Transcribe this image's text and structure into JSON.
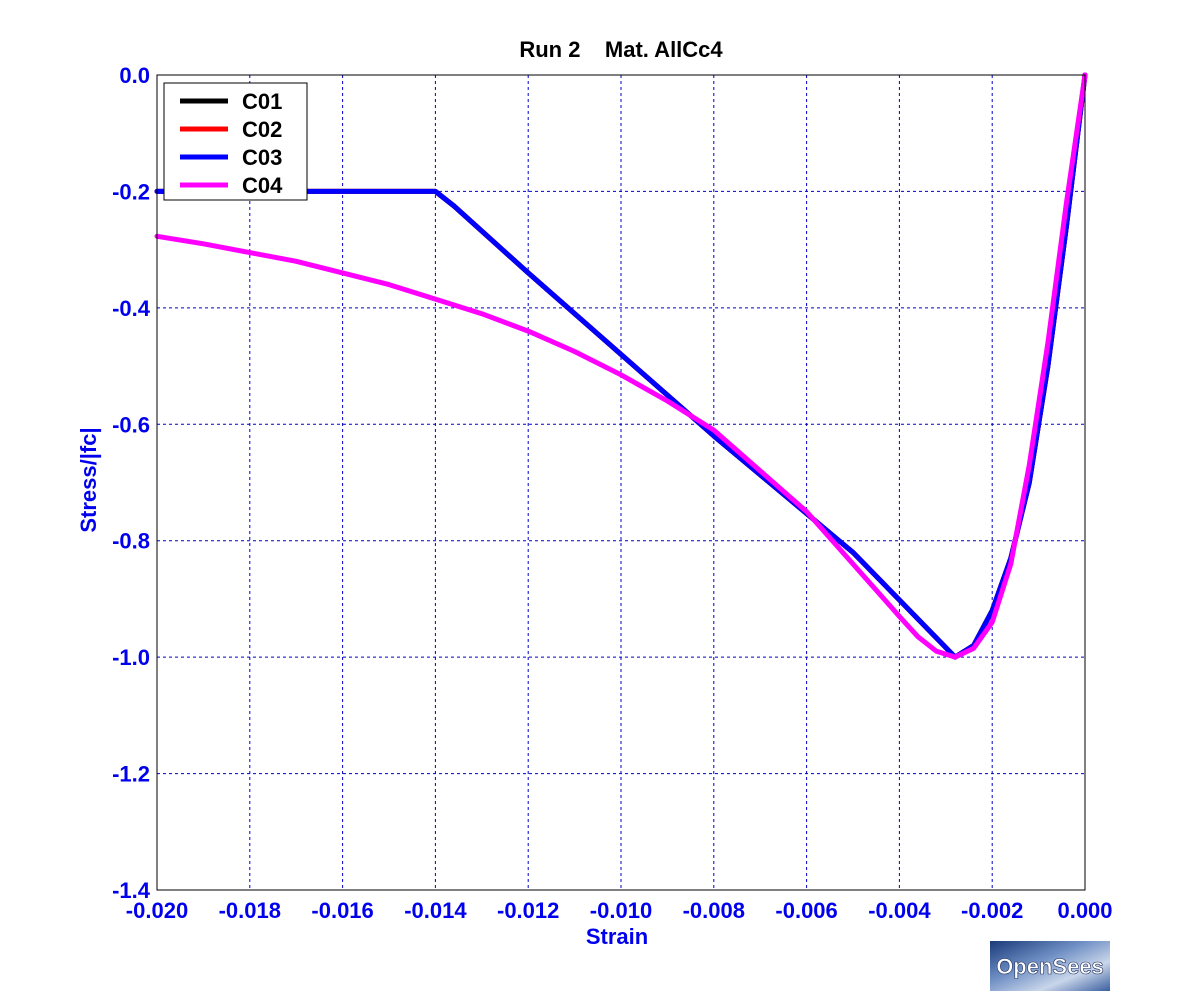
{
  "chart_data": {
    "type": "line",
    "title": "Run 2    Mat. AllCc4",
    "xlabel": "Strain",
    "ylabel": "Stress/|fc|",
    "xlim": [
      -0.02,
      0.0
    ],
    "ylim": [
      -1.4,
      0.0
    ],
    "xticks": [
      -0.02,
      -0.018,
      -0.016,
      -0.014,
      -0.012,
      -0.01,
      -0.008,
      -0.006,
      -0.004,
      -0.002,
      0.0
    ],
    "xtick_labels": [
      "-0.020",
      "-0.018",
      "-0.016",
      "-0.014",
      "-0.012",
      "-0.010",
      "-0.008",
      "-0.006",
      "-0.004",
      "-0.002",
      "0.000"
    ],
    "yticks": [
      0.0,
      -0.2,
      -0.4,
      -0.6,
      -0.8,
      -1.0,
      -1.2,
      -1.4
    ],
    "ytick_labels": [
      "0.0",
      "-0.2",
      "-0.4",
      "-0.6",
      "-0.8",
      "-1.0",
      "-1.2",
      "-1.4"
    ],
    "grid": true,
    "legend_position": "top-left",
    "series": [
      {
        "name": "C01",
        "color": "#000000",
        "x": [
          0.0,
          -0.0004,
          -0.0008,
          -0.0012,
          -0.0016,
          -0.002,
          -0.0024,
          -0.0028,
          -0.005,
          -0.008,
          -0.01,
          -0.012,
          -0.0136,
          -0.014,
          -0.016,
          -0.018,
          -0.02
        ],
        "y": [
          0.0,
          -0.26,
          -0.5,
          -0.7,
          -0.83,
          -0.92,
          -0.98,
          -1.0,
          -0.82,
          -0.62,
          -0.48,
          -0.34,
          -0.225,
          -0.2,
          -0.2,
          -0.2,
          -0.2
        ]
      },
      {
        "name": "C02",
        "color": "#ff0000",
        "x": [
          0.0,
          -0.0004,
          -0.0008,
          -0.0012,
          -0.0016,
          -0.002,
          -0.0024,
          -0.0028,
          -0.005,
          -0.008,
          -0.01,
          -0.012,
          -0.0136,
          -0.014,
          -0.016,
          -0.018,
          -0.02
        ],
        "y": [
          0.0,
          -0.26,
          -0.5,
          -0.7,
          -0.83,
          -0.92,
          -0.98,
          -1.0,
          -0.82,
          -0.62,
          -0.48,
          -0.34,
          -0.225,
          -0.2,
          -0.2,
          -0.2,
          -0.2
        ]
      },
      {
        "name": "C03",
        "color": "#0000ff",
        "x": [
          0.0,
          -0.0004,
          -0.0008,
          -0.0012,
          -0.0016,
          -0.002,
          -0.0024,
          -0.0028,
          -0.005,
          -0.008,
          -0.01,
          -0.012,
          -0.0136,
          -0.014,
          -0.016,
          -0.018,
          -0.02
        ],
        "y": [
          0.0,
          -0.26,
          -0.5,
          -0.7,
          -0.83,
          -0.92,
          -0.98,
          -1.0,
          -0.82,
          -0.62,
          -0.48,
          -0.34,
          -0.225,
          -0.2,
          -0.2,
          -0.2,
          -0.2
        ]
      },
      {
        "name": "C04",
        "color": "#ff00ff",
        "x": [
          0.0,
          -0.0004,
          -0.0008,
          -0.0012,
          -0.0016,
          -0.002,
          -0.0024,
          -0.0028,
          -0.0032,
          -0.0036,
          -0.004,
          -0.005,
          -0.006,
          -0.007,
          -0.008,
          -0.009,
          -0.01,
          -0.011,
          -0.012,
          -0.013,
          -0.014,
          -0.015,
          -0.016,
          -0.017,
          -0.018,
          -0.019,
          -0.02
        ],
        "y": [
          0.0,
          -0.22,
          -0.46,
          -0.67,
          -0.84,
          -0.94,
          -0.985,
          -1.0,
          -0.99,
          -0.965,
          -0.93,
          -0.84,
          -0.75,
          -0.68,
          -0.61,
          -0.56,
          -0.515,
          -0.475,
          -0.44,
          -0.41,
          -0.385,
          -0.36,
          -0.34,
          -0.32,
          -0.305,
          -0.29,
          -0.277
        ]
      }
    ]
  },
  "logo": {
    "text": "OpenSees"
  }
}
